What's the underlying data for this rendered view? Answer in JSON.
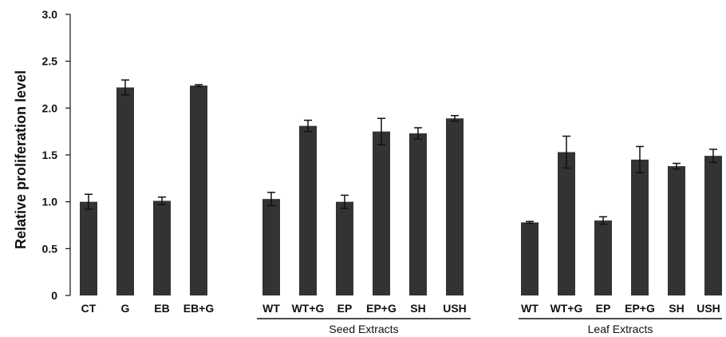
{
  "chart_data": {
    "type": "bar",
    "title": "",
    "xlabel": "",
    "ylabel": "Relative proliferation level",
    "ylim": [
      0,
      3.0
    ],
    "yticks": [
      "0",
      "0.5",
      "1.0",
      "1.5",
      "2.0",
      "2.5",
      "3.0"
    ],
    "grid": false,
    "bar_color": "#333333",
    "categories": [
      "CT",
      "G",
      "EB",
      "EB+G",
      "WT",
      "WT+G",
      "EP",
      "EP+G",
      "SH",
      "USH",
      "WT",
      "WT+G",
      "EP",
      "EP+G",
      "SH",
      "USH"
    ],
    "values": [
      1.0,
      2.22,
      1.01,
      2.24,
      1.03,
      1.81,
      1.0,
      1.75,
      1.73,
      1.89,
      0.78,
      1.53,
      0.8,
      1.45,
      1.38,
      1.49
    ],
    "errors": [
      0.08,
      0.08,
      0.04,
      0.01,
      0.07,
      0.06,
      0.07,
      0.14,
      0.06,
      0.03,
      0.01,
      0.17,
      0.04,
      0.14,
      0.03,
      0.07
    ],
    "groups": [
      {
        "label": "Seed Extracts",
        "categories": [
          "WT",
          "WT+G",
          "EP",
          "EP+G",
          "SH",
          "USH"
        ]
      },
      {
        "label": "Leaf Extracts",
        "categories": [
          "WT",
          "WT+G",
          "EP",
          "EP+G",
          "SH",
          "USH"
        ]
      }
    ]
  }
}
